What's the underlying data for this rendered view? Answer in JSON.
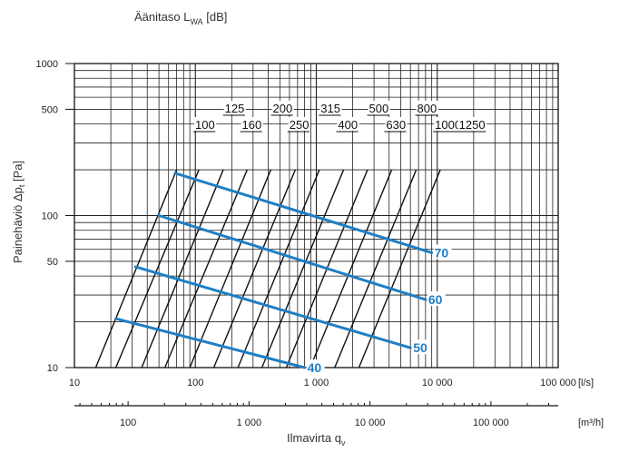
{
  "chart_data": {
    "type": "line",
    "title_main": "Äänitaso L",
    "title_sub": "WA",
    "title_unit": " [dB]",
    "ylabel_main": "Painehäviö Δp",
    "ylabel_sub": "t",
    "ylabel_unit": " [Pa]",
    "xlabel_main": "Ilmavirta q",
    "xlabel_sub": "v",
    "xscale": "log",
    "yscale": "log",
    "xlim": [
      10,
      100000
    ],
    "ylim": [
      10,
      1000
    ],
    "x_ticks": [
      {
        "value": 10,
        "label": "10"
      },
      {
        "value": 100,
        "label": "100"
      },
      {
        "value": 1000,
        "label": "1 000"
      },
      {
        "value": 10000,
        "label": "10 000"
      },
      {
        "value": 100000,
        "label": "100 000"
      }
    ],
    "x_unit_label": "[l/s]",
    "y_ticks": [
      {
        "value": 10,
        "label": "10"
      },
      {
        "value": 50,
        "label": "50"
      },
      {
        "value": 100,
        "label": "100"
      },
      {
        "value": 500,
        "label": "500"
      },
      {
        "value": 1000,
        "label": "1000"
      }
    ],
    "secondary_x_ticks": [
      {
        "value": 100,
        "label": "100"
      },
      {
        "value": 1000,
        "label": "1 000"
      },
      {
        "value": 10000,
        "label": "10 000"
      },
      {
        "value": 100000,
        "label": "100 000"
      }
    ],
    "secondary_x_unit_label": "[m³/h]",
    "grid": true,
    "duct_size_lines": [
      {
        "name": "100",
        "points": [
          [
            15,
            10
          ],
          [
            70,
            200
          ]
        ]
      },
      {
        "name": "125",
        "points": [
          [
            22,
            10
          ],
          [
            107,
            200
          ]
        ]
      },
      {
        "name": "160",
        "points": [
          [
            36,
            10
          ],
          [
            170,
            200
          ]
        ]
      },
      {
        "name": "200",
        "points": [
          [
            56,
            10
          ],
          [
            268,
            200
          ]
        ]
      },
      {
        "name": "250",
        "points": [
          [
            90,
            10
          ],
          [
            420,
            200
          ]
        ]
      },
      {
        "name": "315",
        "points": [
          [
            142,
            10
          ],
          [
            670,
            200
          ]
        ]
      },
      {
        "name": "400",
        "points": [
          [
            225,
            10
          ],
          [
            1060,
            200
          ]
        ]
      },
      {
        "name": "500",
        "points": [
          [
            355,
            10
          ],
          [
            1680,
            200
          ]
        ]
      },
      {
        "name": "630",
        "points": [
          [
            565,
            10
          ],
          [
            2650,
            200
          ]
        ]
      },
      {
        "name": "800",
        "points": [
          [
            890,
            10
          ],
          [
            4200,
            200
          ]
        ]
      },
      {
        "name": "1000",
        "points": [
          [
            1420,
            10
          ],
          [
            6700,
            200
          ]
        ]
      },
      {
        "name": "1250",
        "points": [
          [
            2250,
            10
          ],
          [
            10600,
            200
          ]
        ]
      }
    ],
    "sound_level_lines": [
      {
        "name": "40",
        "points": [
          [
            22,
            21
          ],
          [
            800,
            10
          ]
        ]
      },
      {
        "name": "50",
        "points": [
          [
            32,
            46
          ],
          [
            6000,
            13.5
          ]
        ]
      },
      {
        "name": "60",
        "points": [
          [
            50,
            100
          ],
          [
            8000,
            28
          ]
        ]
      },
      {
        "name": "70",
        "points": [
          [
            68,
            190
          ],
          [
            9000,
            57
          ]
        ]
      }
    ],
    "colors": {
      "sound_level": "#1f7fc4",
      "duct_size": "#111111",
      "grid": "#222222"
    }
  }
}
